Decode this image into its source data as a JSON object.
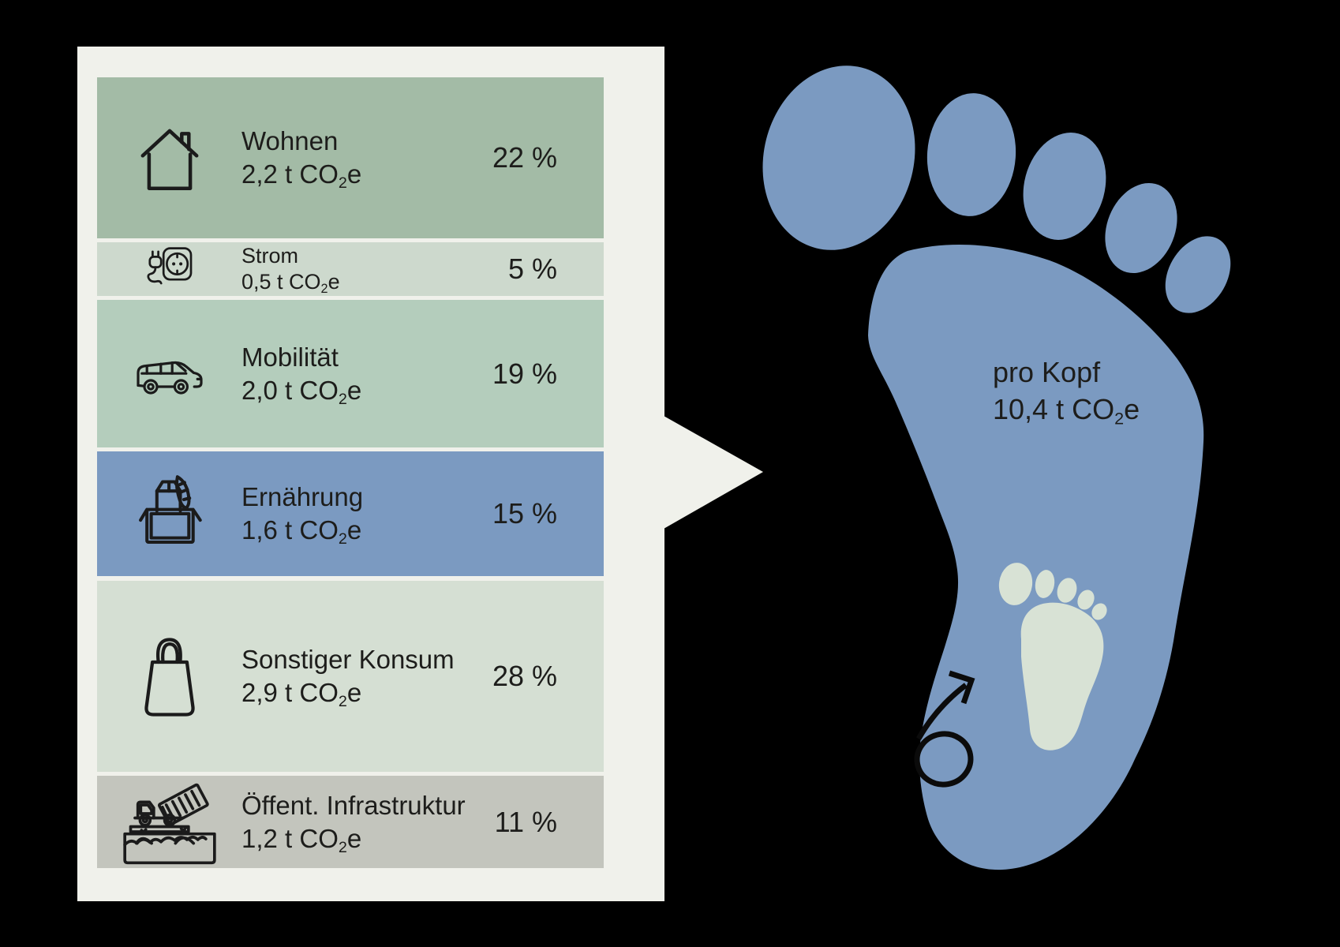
{
  "infographic": {
    "background_color": "#000000",
    "panel_color": "#f0f1eb",
    "text_color": "#1d1d1b",
    "categories": [
      {
        "id": "wohnen",
        "label": "Wohnen",
        "value": "2,2 t CO₂e",
        "percent": "22 %",
        "icon": "house-icon",
        "color": "#a3bba6"
      },
      {
        "id": "strom",
        "label": "Strom",
        "value": "0,5 t CO₂e",
        "percent": "5 %",
        "icon": "plug-socket-icon",
        "color": "#cdd9cd"
      },
      {
        "id": "mobilitaet",
        "label": "Mobilität",
        "value": "2,0 t CO₂e",
        "percent": "19 %",
        "icon": "van-icon",
        "color": "#b4cdbc"
      },
      {
        "id": "ernaehrung",
        "label": "Ernährung",
        "value": "1,6 t CO₂e",
        "percent": "15 %",
        "icon": "groceries-icon",
        "color": "#7b9ac1"
      },
      {
        "id": "sonstiger-konsum",
        "label": "Sonstiger Konsum",
        "value": "2,9 t CO₂e",
        "percent": "28 %",
        "icon": "shopping-bag-icon",
        "color": "#d5dfd3"
      },
      {
        "id": "oeff-infrastruktur",
        "label": "Öffent. Infrastruktur",
        "value": "1,2 t CO₂e",
        "percent": "11 %",
        "icon": "dump-truck-icon",
        "color": "#c3c5bd"
      }
    ],
    "footprint": {
      "label_line1": "pro Kopf",
      "label_line2": "10,4 t CO₂e",
      "foot_color": "#7b9ac1",
      "small_foot_color": "#d8e2d5",
      "arrow_color": "#0b0b0b"
    }
  },
  "chart_data": {
    "type": "bar",
    "title": "",
    "categories": [
      "Wohnen",
      "Strom",
      "Mobilität",
      "Ernährung",
      "Sonstiger Konsum",
      "Öffent. Infrastruktur"
    ],
    "values_t_co2e": [
      2.2,
      0.5,
      2.0,
      1.6,
      2.9,
      1.2
    ],
    "percents": [
      22,
      5,
      19,
      15,
      28,
      11
    ],
    "total_label": "pro Kopf",
    "total_value_t_co2e": 10.4,
    "unit": "t CO₂e",
    "legend_position": "none",
    "grid": false
  }
}
